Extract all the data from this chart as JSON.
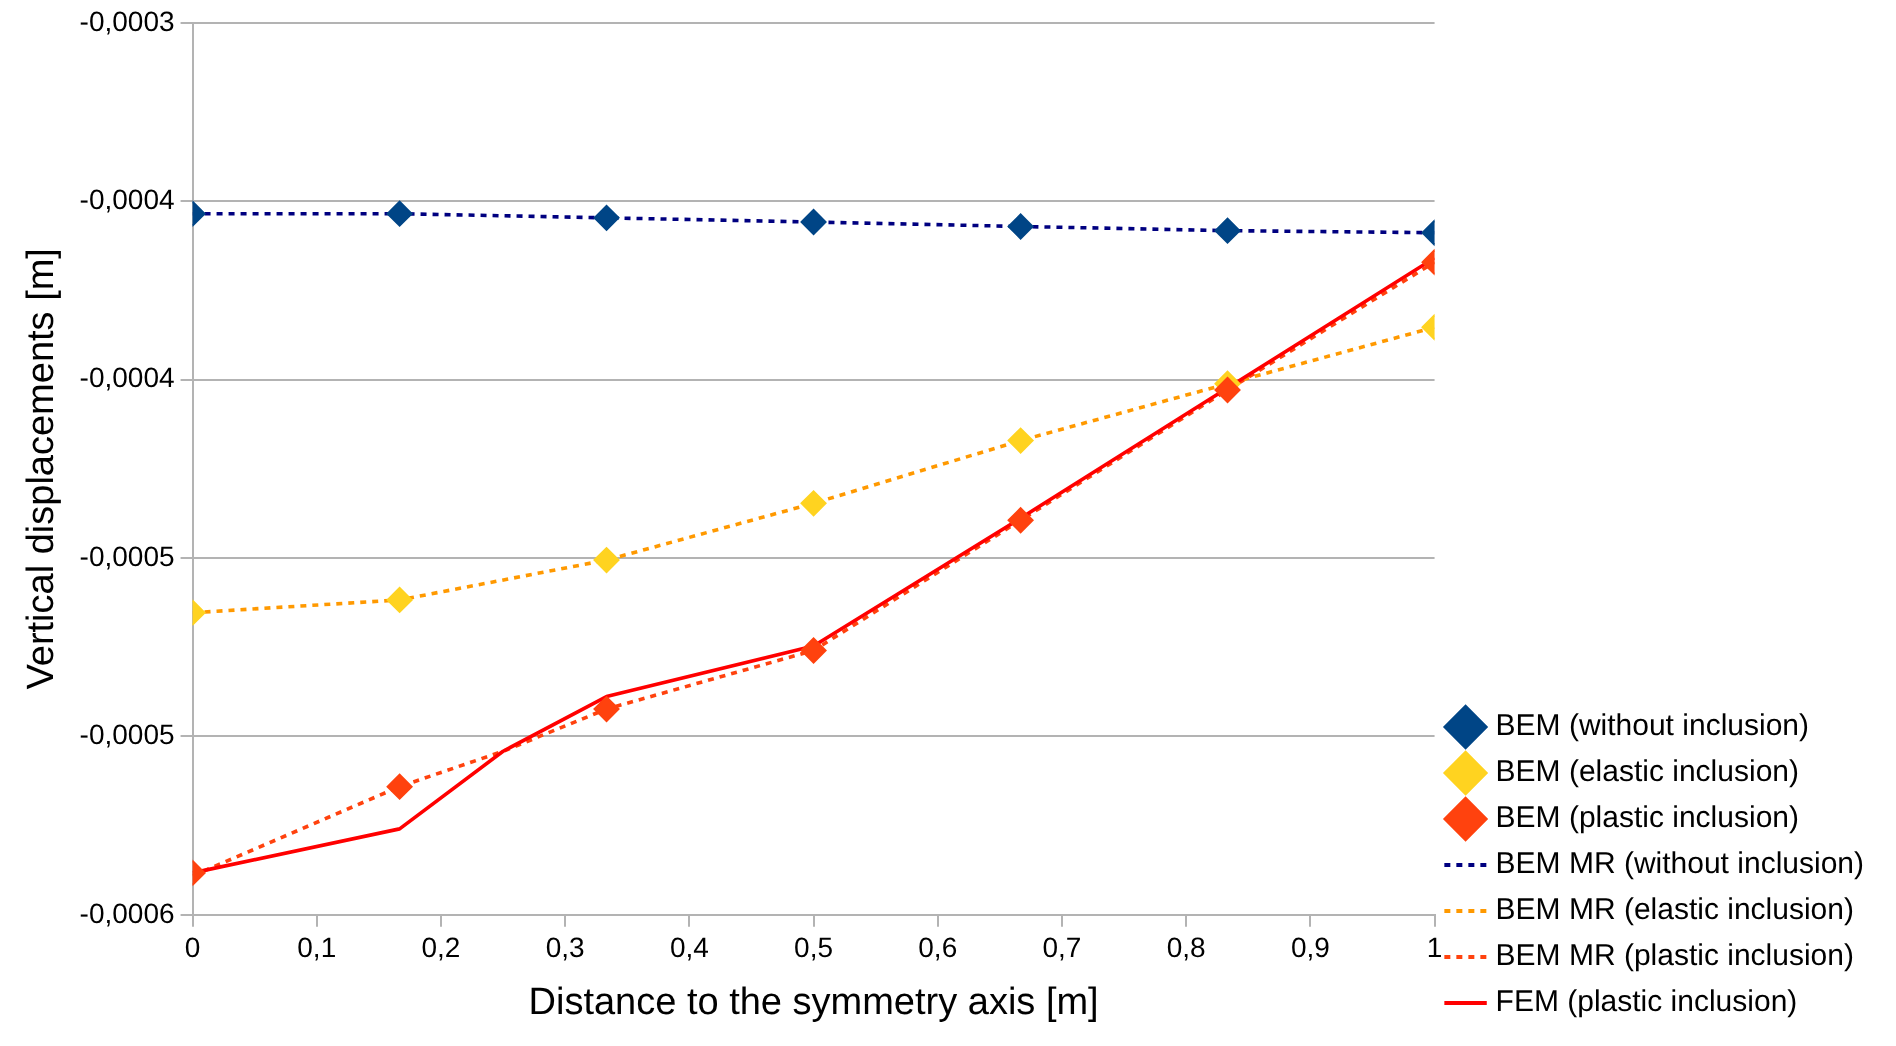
{
  "chart_data": {
    "type": "scatter",
    "xlabel": "Distance to the symmetry axis [m]",
    "ylabel": "Vertical displacements [m]",
    "xlim": [
      0,
      1
    ],
    "xticks": [
      0,
      {
        "value": 0.1,
        "label": "0,1"
      },
      {
        "value": 0.2,
        "label": "0,2"
      },
      {
        "value": 0.3,
        "label": "0,3"
      },
      {
        "value": 0.4,
        "label": "0,4"
      },
      {
        "value": 0.5,
        "label": "0,5"
      },
      {
        "value": 0.6,
        "label": "0,6"
      },
      {
        "value": 0.7,
        "label": "0,7"
      },
      {
        "value": 0.8,
        "label": "0,8"
      },
      {
        "value": 0.9,
        "label": "0,9"
      },
      1
    ],
    "ylim": [
      -0.0006,
      -0.0003
    ],
    "yticks": [
      {
        "value": -0.0006,
        "label": "-0,0006"
      },
      {
        "value": -0.00054,
        "label": "-0,0005"
      },
      {
        "value": -0.00048,
        "label": "-0,0005"
      },
      {
        "value": -0.00042,
        "label": "-0,0004"
      },
      {
        "value": -0.00036,
        "label": "-0,0004"
      },
      {
        "value": -0.0003,
        "label": "-0,0003"
      }
    ],
    "grid": "y",
    "legend": "right",
    "series": [
      {
        "name": "BEM (without inclusion)",
        "type": "scatter",
        "marker": "diamond",
        "color": "#004586",
        "x": [
          0,
          0.1667,
          0.3333,
          0.5,
          0.6667,
          0.8333,
          1
        ],
        "values": [
          -0.0003642,
          -0.0003642,
          -0.0003656,
          -0.000367,
          -0.0003685,
          -0.0003699,
          -0.0003706
        ]
      },
      {
        "name": "BEM (elastic inclusion)",
        "type": "scatter",
        "marker": "diamond",
        "color": "#ffd320",
        "x": [
          0,
          0.1667,
          0.3333,
          0.5,
          0.6667,
          0.8333,
          1
        ],
        "values": [
          -0.0004984,
          -0.0004941,
          -0.0004807,
          -0.0004616,
          -0.0004405,
          -0.0004214,
          -0.0004024
        ]
      },
      {
        "name": "BEM (plastic inclusion)",
        "type": "scatter",
        "marker": "diamond",
        "color": "#ff420e",
        "x": [
          0,
          0.1667,
          0.3333,
          0.5,
          0.6667,
          0.8333,
          1
        ],
        "values": [
          -0.0005859,
          -0.0005569,
          -0.0005308,
          -0.0005111,
          -0.0004673,
          -0.0004235,
          -0.0003805
        ]
      },
      {
        "name": "BEM MR (without inclusion)",
        "type": "line",
        "marker": "none",
        "line_style": "dotted",
        "color": "#000080",
        "x": [
          0,
          0.1667,
          0.3333,
          0.5,
          0.6667,
          0.8333,
          1
        ],
        "values": [
          -0.0003642,
          -0.0003642,
          -0.0003656,
          -0.000367,
          -0.0003685,
          -0.0003699,
          -0.0003706
        ]
      },
      {
        "name": "BEM MR (elastic inclusion)",
        "type": "line",
        "marker": "none",
        "line_style": "dotted",
        "color": "#ff9900",
        "x": [
          0,
          0.1667,
          0.3333,
          0.5,
          0.6667,
          0.8333,
          1
        ],
        "values": [
          -0.0004984,
          -0.0004941,
          -0.0004807,
          -0.0004616,
          -0.0004405,
          -0.0004214,
          -0.0004024
        ]
      },
      {
        "name": "BEM MR (plastic inclusion)",
        "type": "line",
        "marker": "none",
        "line_style": "dotted",
        "color": "#ff420e",
        "x": [
          0,
          0.1667,
          0.25,
          0.3333,
          0.5,
          0.6667,
          0.8333,
          1
        ],
        "values": [
          -0.0005869,
          -0.0005569,
          -0.000545,
          -0.0005308,
          -0.0005111,
          -0.0004673,
          -0.0004235,
          -0.0003805
        ]
      },
      {
        "name": "FEM (plastic inclusion)",
        "type": "line",
        "marker": "none",
        "line_style": "solid",
        "color": "#ff0000",
        "x": [
          0,
          0.1667,
          0.25,
          0.3333,
          0.5,
          0.6667,
          0.8333,
          1
        ],
        "values": [
          -0.0005859,
          -0.0005711,
          -0.000545,
          -0.0005266,
          -0.0005096,
          -0.0004666,
          -0.0004228,
          -0.0003791
        ]
      }
    ]
  }
}
